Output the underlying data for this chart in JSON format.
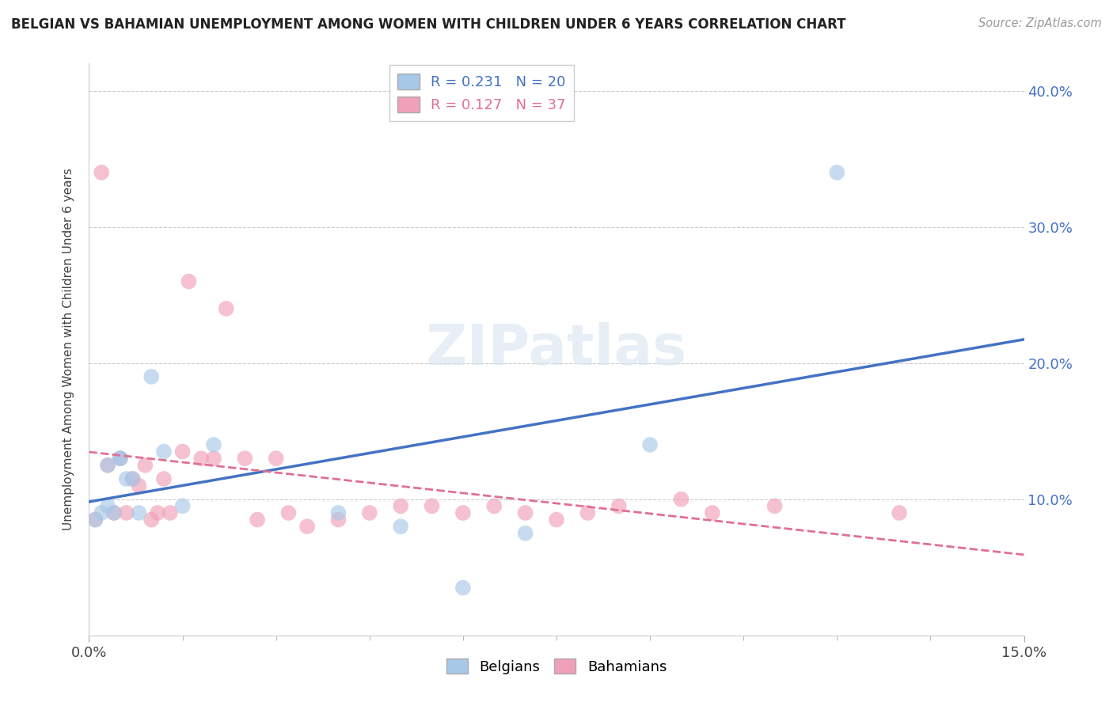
{
  "title": "BELGIAN VS BAHAMIAN UNEMPLOYMENT AMONG WOMEN WITH CHILDREN UNDER 6 YEARS CORRELATION CHART",
  "source": "Source: ZipAtlas.com",
  "ylabel": "Unemployment Among Women with Children Under 6 years",
  "xlim": [
    0.0,
    0.15
  ],
  "ylim": [
    0.0,
    0.42
  ],
  "x_ticks": [
    0.0,
    0.15
  ],
  "x_tick_labels": [
    "0.0%",
    "15.0%"
  ],
  "y_ticks": [
    0.1,
    0.2,
    0.3,
    0.4
  ],
  "y_tick_labels": [
    "10.0%",
    "20.0%",
    "30.0%",
    "40.0%"
  ],
  "belgians_R": 0.231,
  "belgians_N": 20,
  "bahamians_R": 0.127,
  "bahamians_N": 37,
  "belgian_color": "#a8c8e8",
  "bahamian_color": "#f0a0b8",
  "belgian_line_color": "#4472c4",
  "bahamian_line_color": "#e07090",
  "belgians_x": [
    0.001,
    0.002,
    0.003,
    0.003,
    0.004,
    0.005,
    0.005,
    0.006,
    0.007,
    0.008,
    0.01,
    0.012,
    0.015,
    0.02,
    0.04,
    0.05,
    0.06,
    0.07,
    0.09,
    0.12
  ],
  "belgians_y": [
    0.085,
    0.09,
    0.095,
    0.125,
    0.09,
    0.13,
    0.13,
    0.115,
    0.115,
    0.09,
    0.19,
    0.135,
    0.095,
    0.14,
    0.09,
    0.08,
    0.035,
    0.075,
    0.14,
    0.34
  ],
  "bahamians_x": [
    0.001,
    0.002,
    0.003,
    0.004,
    0.005,
    0.006,
    0.007,
    0.008,
    0.009,
    0.01,
    0.011,
    0.012,
    0.013,
    0.015,
    0.016,
    0.018,
    0.02,
    0.022,
    0.025,
    0.027,
    0.03,
    0.032,
    0.035,
    0.04,
    0.045,
    0.05,
    0.055,
    0.06,
    0.065,
    0.07,
    0.075,
    0.08,
    0.085,
    0.095,
    0.1,
    0.11,
    0.13
  ],
  "bahamians_y": [
    0.085,
    0.34,
    0.125,
    0.09,
    0.13,
    0.09,
    0.115,
    0.11,
    0.125,
    0.085,
    0.09,
    0.115,
    0.09,
    0.135,
    0.26,
    0.13,
    0.13,
    0.24,
    0.13,
    0.085,
    0.13,
    0.09,
    0.08,
    0.085,
    0.09,
    0.095,
    0.095,
    0.09,
    0.095,
    0.09,
    0.085,
    0.09,
    0.095,
    0.1,
    0.09,
    0.095,
    0.09
  ]
}
